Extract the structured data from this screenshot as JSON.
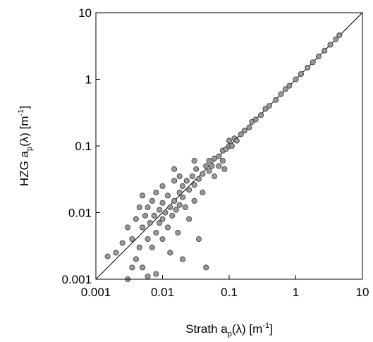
{
  "chart_data": {
    "type": "scatter",
    "xlabel": [
      "Strath a",
      "p",
      "(λ) [m",
      "-1",
      "]"
    ],
    "ylabel": [
      "HZG a",
      "p",
      "(λ) [m",
      "-1",
      "]"
    ],
    "xlim": [
      0.001,
      10
    ],
    "ylim": [
      0.001,
      10
    ],
    "xticks": [
      0.001,
      0.01,
      0.1,
      1,
      10
    ],
    "yticks": [
      0.001,
      0.01,
      0.1,
      1,
      10
    ],
    "log_x": true,
    "log_y": true,
    "color": "#999999",
    "series": [
      {
        "x": [
          0.0015,
          0.002,
          0.0025,
          0.003,
          0.003,
          0.0035,
          0.0035,
          0.004,
          0.004,
          0.0045,
          0.0045,
          0.005,
          0.005,
          0.005,
          0.0055,
          0.006,
          0.006,
          0.006,
          0.0065,
          0.007,
          0.007,
          0.0075,
          0.008,
          0.008,
          0.008,
          0.009,
          0.009,
          0.01,
          0.01,
          0.01,
          0.01,
          0.011,
          0.012,
          0.012,
          0.013,
          0.013,
          0.014,
          0.015,
          0.015,
          0.016,
          0.017,
          0.018,
          0.018,
          0.02,
          0.02,
          0.02,
          0.022,
          0.023,
          0.025,
          0.025,
          0.028,
          0.03,
          0.03,
          0.032,
          0.035,
          0.035,
          0.04,
          0.04,
          0.045,
          0.045,
          0.05,
          0.05,
          0.055,
          0.06,
          0.06,
          0.07,
          0.07,
          0.08,
          0.08,
          0.09,
          0.1,
          0.1,
          0.11,
          0.12,
          0.13,
          0.15,
          0.17,
          0.2,
          0.22,
          0.25,
          0.3,
          0.35,
          0.4,
          0.5,
          0.6,
          0.7,
          0.8,
          1.0,
          1.2,
          1.5,
          1.8,
          2.2,
          2.7,
          3.3,
          4.0,
          4.5,
          0.018,
          0.015,
          0.085,
          0.03
        ],
        "y": [
          0.0022,
          0.0025,
          0.0035,
          0.001,
          0.006,
          0.004,
          0.0015,
          0.008,
          0.002,
          0.012,
          0.003,
          0.006,
          0.0015,
          0.018,
          0.009,
          0.004,
          0.012,
          0.0011,
          0.007,
          0.015,
          0.003,
          0.009,
          0.005,
          0.02,
          0.0012,
          0.011,
          0.007,
          0.008,
          0.014,
          0.004,
          0.025,
          0.01,
          0.006,
          0.018,
          0.012,
          0.0025,
          0.009,
          0.015,
          0.03,
          0.011,
          0.005,
          0.02,
          0.013,
          0.017,
          0.025,
          0.002,
          0.012,
          0.03,
          0.022,
          0.008,
          0.035,
          0.026,
          0.015,
          0.045,
          0.032,
          0.004,
          0.038,
          0.02,
          0.05,
          0.0015,
          0.042,
          0.06,
          0.05,
          0.065,
          0.035,
          0.07,
          0.05,
          0.085,
          0.06,
          0.09,
          0.1,
          0.12,
          0.1,
          0.13,
          0.12,
          0.15,
          0.17,
          0.19,
          0.23,
          0.25,
          0.29,
          0.36,
          0.4,
          0.49,
          0.6,
          0.71,
          0.8,
          1.0,
          1.2,
          1.5,
          1.8,
          2.2,
          2.7,
          3.3,
          4.0,
          4.6,
          0.035,
          0.045,
          0.045,
          0.06
        ]
      }
    ]
  }
}
